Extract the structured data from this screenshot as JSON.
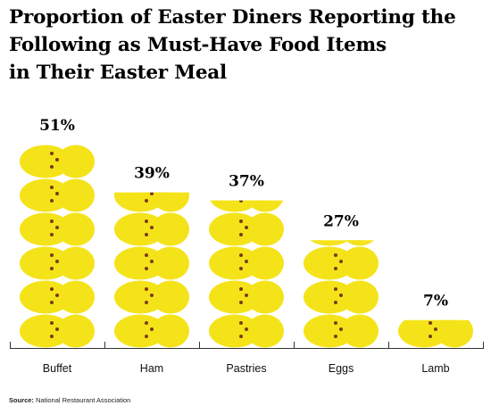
{
  "title_lines": [
    "Proportion of Easter Diners Reporting the",
    "Following as Must-Have Food Items",
    "in Their Easter Meal"
  ],
  "source": {
    "label": "Source:",
    "text": "National Restaurant Association"
  },
  "colors": {
    "peep_fill": "#f5e31a",
    "peep_eye": "#7a3b10",
    "axis": "#333333"
  },
  "icon": "marshmallow-bunny-icon",
  "chart_data": {
    "type": "bar",
    "categories": [
      "Buffet",
      "Ham",
      "Pastries",
      "Eggs",
      "Lamb"
    ],
    "values": [
      51,
      39,
      37,
      27,
      7
    ],
    "value_labels": [
      "51%",
      "39%",
      "37%",
      "27%",
      "7%"
    ],
    "units_per_icon": 8.5,
    "ylim": [
      0,
      51
    ],
    "grid": false,
    "legend": "none"
  }
}
